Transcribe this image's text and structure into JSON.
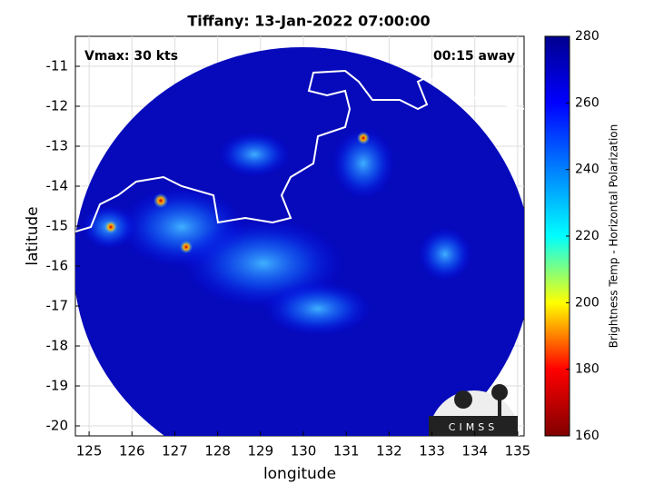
{
  "chart_data": {
    "type": "image",
    "title": "Tiffany: 13-Jan-2022 07:00:00",
    "xlabel": "longitude",
    "ylabel": "latitude",
    "annotations": [
      "Vmax: 30 kts",
      "00:15 away"
    ],
    "logo": "CIMSS",
    "xlim": [
      124.68,
      135.15
    ],
    "xticks": [
      125,
      126,
      127,
      128,
      129,
      130,
      131,
      132,
      133,
      134,
      135
    ],
    "ylim": [
      -20.25,
      -10.25
    ],
    "yticks": [
      -20,
      -19,
      -18,
      -17,
      -16,
      -15,
      -14,
      -13,
      -12,
      -11
    ],
    "grid": true,
    "colorbar": {
      "label": "Brightness Temp - Horizontal Polarization",
      "clim": [
        160,
        280
      ],
      "ticks": [
        160,
        180,
        200,
        220,
        240,
        260,
        280
      ],
      "colormap": [
        "#800000",
        "#ff0000",
        "#ffff00",
        "#00ffff",
        "#0080ff",
        "#0000ff",
        "#00008f"
      ]
    }
  }
}
